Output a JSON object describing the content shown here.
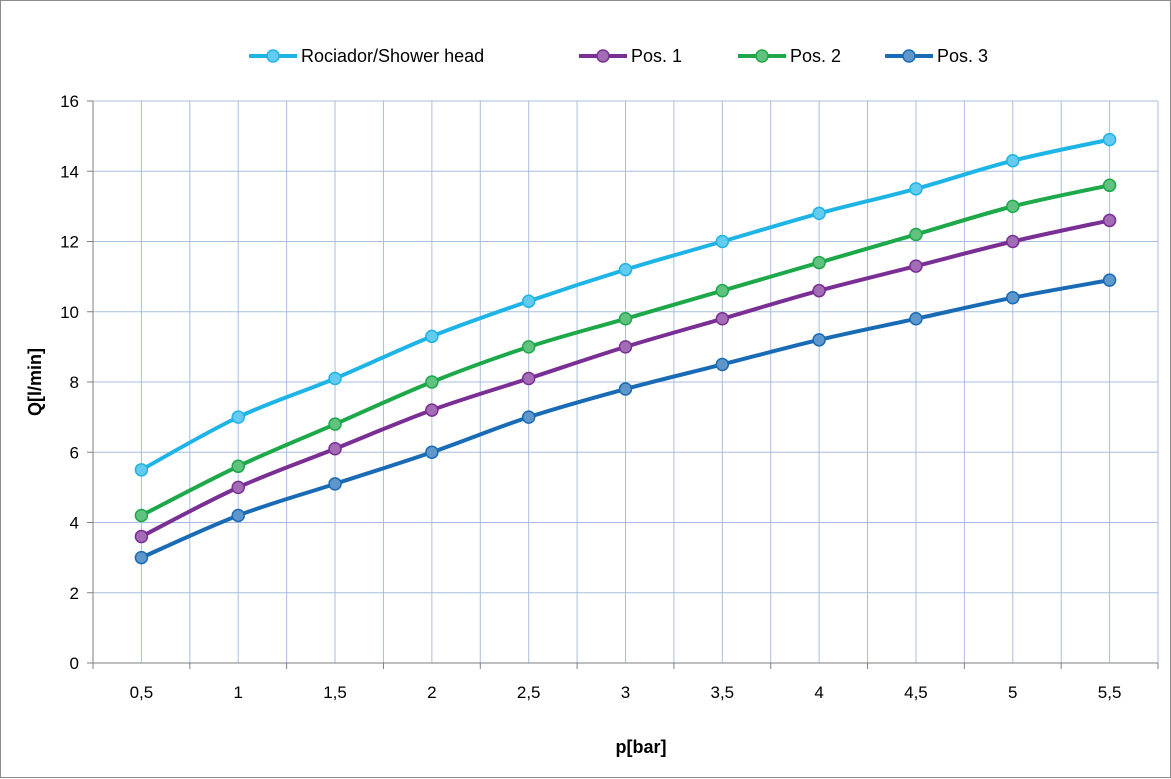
{
  "chart_data": {
    "type": "line",
    "title": "",
    "xlabel": "p[bar]",
    "ylabel": "Q[l/min]",
    "x": [
      "0,5",
      "1",
      "1,5",
      "2",
      "2,5",
      "3",
      "3,5",
      "4",
      "4,5",
      "5",
      "5,5"
    ],
    "yticks": [
      "0",
      "2",
      "4",
      "6",
      "8",
      "10",
      "12",
      "14",
      "16"
    ],
    "ylim": [
      0,
      16
    ],
    "grid": true,
    "legend_position": "top",
    "series": [
      {
        "name": "Rociador/Shower head",
        "color": "#1fb4e6",
        "values": [
          5.5,
          7.0,
          8.1,
          9.3,
          10.3,
          11.2,
          12.0,
          12.8,
          13.5,
          14.3,
          14.9
        ]
      },
      {
        "name": "Pos. 1",
        "color": "#7a2f95",
        "values": [
          3.6,
          5.0,
          6.1,
          7.2,
          8.1,
          9.0,
          9.8,
          10.6,
          11.3,
          12.0,
          12.6
        ]
      },
      {
        "name": "Pos. 2",
        "color": "#1da84a",
        "values": [
          4.2,
          5.6,
          6.8,
          8.0,
          9.0,
          9.8,
          10.6,
          11.4,
          12.2,
          13.0,
          13.6
        ]
      },
      {
        "name": "Pos. 3",
        "color": "#1a6bb5",
        "values": [
          3.0,
          4.2,
          5.1,
          6.0,
          7.0,
          7.8,
          8.5,
          9.2,
          9.8,
          10.4,
          10.9
        ]
      }
    ]
  }
}
